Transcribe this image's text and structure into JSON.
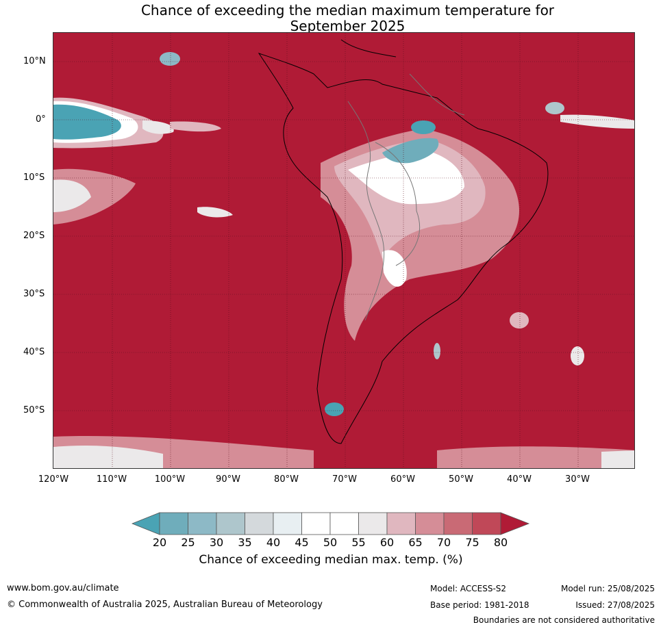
{
  "title_line1": "Chance of exceeding the median maximum temperature for",
  "title_line2": "September 2025",
  "lat_labels": [
    "10°N",
    "0°",
    "10°S",
    "20°S",
    "30°S",
    "40°S",
    "50°S"
  ],
  "lon_labels": [
    "120°W",
    "110°W",
    "100°W",
    "90°W",
    "80°W",
    "70°W",
    "60°W",
    "50°W",
    "40°W",
    "30°W"
  ],
  "colorbar": {
    "ticks": [
      "20",
      "25",
      "30",
      "35",
      "40",
      "45",
      "50",
      "55",
      "60",
      "65",
      "70",
      "75",
      "80"
    ],
    "colors": {
      "below_20": "#4aa3b4",
      "20_25": "#6fadbb",
      "25_30": "#8db9c6",
      "30_35": "#aec6cc",
      "35_40": "#d4d9dc",
      "40_45": "#e8eff2",
      "45_50": "#ffffff",
      "50_55": "#ffffff",
      "55_60": "#ebe9ea",
      "60_65": "#e0b7bf",
      "65_70": "#d58d97",
      "70_75": "#c96a75",
      "75_80": "#c04858",
      "above_80": "#b01b36"
    },
    "label": "Chance of exceeding median max. temp. (%)"
  },
  "footer": {
    "website": "www.bom.gov.au/climate",
    "copyright": "© Commonwealth of Australia 2025, Australian Bureau of Meteorology",
    "model": "Model: ACCESS-S2",
    "base_period": "Base period: 1981-2018",
    "model_run": "Model run: 25/08/2025",
    "issued": "Issued: 27/08/2025",
    "disclaimer": "Boundaries are not considered authoritative"
  }
}
